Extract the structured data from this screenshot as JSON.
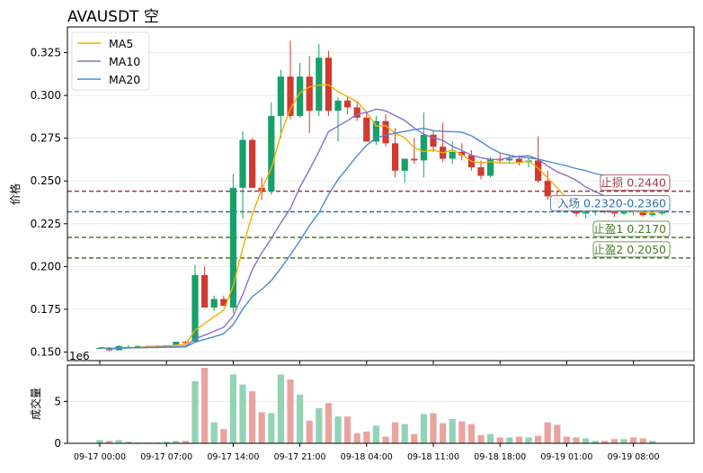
{
  "chart_data": [
    {
      "type": "candlestick",
      "title": "AVAUSDT  空",
      "ylabel": "价格",
      "ylim": [
        0.145,
        0.34
      ],
      "yticks": [
        0.15,
        0.175,
        0.2,
        0.225,
        0.25,
        0.275,
        0.3,
        0.325
      ],
      "ytick_labels": [
        "0.150",
        "0.175",
        "0.200",
        "0.225",
        "0.250",
        "0.275",
        "0.300",
        "0.325"
      ],
      "offset_text": "1e6",
      "grid": true,
      "legend_position": "top-left",
      "x": [
        0,
        1,
        2,
        3,
        4,
        5,
        6,
        7,
        8,
        9,
        10,
        11,
        12,
        13,
        14,
        15,
        16,
        17,
        18,
        19,
        20,
        21,
        22,
        23,
        24,
        25,
        26,
        27,
        28,
        29,
        30,
        31,
        32,
        33,
        34,
        35,
        36,
        37,
        38,
        39,
        40,
        41,
        42,
        43,
        44,
        45,
        46,
        47,
        48,
        49,
        50,
        51,
        52,
        53,
        54,
        55,
        56,
        57,
        58,
        59
      ],
      "ohlc": [
        [
          0.1525,
          0.153,
          0.152,
          0.1525
        ],
        [
          0.1525,
          0.153,
          0.1505,
          0.151
        ],
        [
          0.151,
          0.154,
          0.151,
          0.1535
        ],
        [
          0.153,
          0.154,
          0.1525,
          0.153
        ],
        [
          0.153,
          0.154,
          0.1525,
          0.1535
        ],
        [
          0.1535,
          0.154,
          0.153,
          0.1535
        ],
        [
          0.1535,
          0.154,
          0.153,
          0.1535
        ],
        [
          0.1535,
          0.154,
          0.153,
          0.154
        ],
        [
          0.154,
          0.156,
          0.1535,
          0.156
        ],
        [
          0.156,
          0.1565,
          0.1545,
          0.1555
        ],
        [
          0.156,
          0.201,
          0.1555,
          0.195
        ],
        [
          0.195,
          0.2,
          0.176,
          0.176
        ],
        [
          0.176,
          0.183,
          0.174,
          0.181
        ],
        [
          0.181,
          0.183,
          0.177,
          0.177
        ],
        [
          0.176,
          0.254,
          0.173,
          0.246
        ],
        [
          0.246,
          0.279,
          0.228,
          0.274
        ],
        [
          0.274,
          0.275,
          0.246,
          0.246
        ],
        [
          0.246,
          0.252,
          0.239,
          0.244
        ],
        [
          0.244,
          0.296,
          0.242,
          0.288
        ],
        [
          0.288,
          0.315,
          0.275,
          0.311
        ],
        [
          0.311,
          0.332,
          0.286,
          0.288
        ],
        [
          0.288,
          0.319,
          0.287,
          0.311
        ],
        [
          0.311,
          0.323,
          0.278,
          0.291
        ],
        [
          0.291,
          0.33,
          0.288,
          0.322
        ],
        [
          0.322,
          0.326,
          0.288,
          0.291
        ],
        [
          0.291,
          0.299,
          0.273,
          0.297
        ],
        [
          0.297,
          0.299,
          0.289,
          0.293
        ],
        [
          0.293,
          0.297,
          0.285,
          0.287
        ],
        [
          0.287,
          0.29,
          0.274,
          0.273
        ],
        [
          0.273,
          0.288,
          0.271,
          0.285
        ],
        [
          0.285,
          0.289,
          0.27,
          0.272
        ],
        [
          0.272,
          0.281,
          0.252,
          0.256
        ],
        [
          0.256,
          0.263,
          0.249,
          0.263
        ],
        [
          0.263,
          0.275,
          0.26,
          0.262
        ],
        [
          0.262,
          0.29,
          0.252,
          0.277
        ],
        [
          0.277,
          0.279,
          0.267,
          0.27
        ],
        [
          0.27,
          0.284,
          0.261,
          0.263
        ],
        [
          0.263,
          0.273,
          0.26,
          0.267
        ],
        [
          0.267,
          0.272,
          0.262,
          0.265
        ],
        [
          0.265,
          0.268,
          0.256,
          0.258
        ],
        [
          0.258,
          0.262,
          0.251,
          0.253
        ],
        [
          0.253,
          0.264,
          0.252,
          0.263
        ],
        [
          0.263,
          0.266,
          0.26,
          0.262
        ],
        [
          0.262,
          0.265,
          0.26,
          0.263
        ],
        [
          0.263,
          0.265,
          0.259,
          0.261
        ],
        [
          0.261,
          0.264,
          0.258,
          0.262
        ],
        [
          0.262,
          0.276,
          0.249,
          0.25
        ],
        [
          0.25,
          0.256,
          0.239,
          0.241
        ],
        [
          0.241,
          0.244,
          0.235,
          0.237
        ],
        [
          0.237,
          0.241,
          0.232,
          0.233
        ],
        [
          0.233,
          0.237,
          0.229,
          0.231
        ],
        [
          0.231,
          0.235,
          0.228,
          0.232
        ],
        [
          0.232,
          0.236,
          0.23,
          0.234
        ],
        [
          0.234,
          0.237,
          0.231,
          0.232
        ],
        [
          0.232,
          0.235,
          0.229,
          0.231
        ],
        [
          0.231,
          0.236,
          0.23,
          0.233
        ],
        [
          0.233,
          0.235,
          0.23,
          0.232
        ],
        [
          0.232,
          0.234,
          0.229,
          0.23
        ],
        [
          0.23,
          0.233,
          0.229,
          0.231
        ],
        [
          0.231,
          0.234,
          0.23,
          0.232
        ]
      ],
      "series": [
        {
          "name": "MA5",
          "color": "#f0b000",
          "values": [
            0.1525,
            0.1518,
            0.1523,
            0.1525,
            0.1527,
            0.1532,
            0.1534,
            0.1535,
            0.1541,
            0.1545,
            0.1628,
            0.1667,
            0.1707,
            0.1745,
            0.1886,
            0.2108,
            0.2304,
            0.2453,
            0.2574,
            0.2772,
            0.2922,
            0.3016,
            0.305,
            0.306,
            0.3062,
            0.3022,
            0.2992,
            0.2964,
            0.2901,
            0.2822,
            0.2824,
            0.278,
            0.2753,
            0.2694,
            0.2671,
            0.2682,
            0.2664,
            0.2681,
            0.2655,
            0.2615,
            0.2606,
            0.2612,
            0.2606,
            0.2603,
            0.2607,
            0.2617,
            0.2575,
            0.2517,
            0.2459,
            0.24,
            0.234,
            0.2338,
            0.2327,
            0.2327,
            0.2324,
            0.2325,
            0.2323,
            0.2318,
            0.2316,
            0.2322
          ]
        },
        {
          "name": "MA10",
          "color": "#8a70c8",
          "values": [
            0.1525,
            0.152,
            0.1522,
            0.1524,
            0.1525,
            0.1527,
            0.1529,
            0.153,
            0.1532,
            0.1534,
            0.1577,
            0.1599,
            0.1621,
            0.1645,
            0.171,
            0.1836,
            0.1981,
            0.2079,
            0.2164,
            0.2255,
            0.2339,
            0.2464,
            0.2565,
            0.2673,
            0.2788,
            0.282,
            0.2852,
            0.289,
            0.29,
            0.292,
            0.291,
            0.2882,
            0.2854,
            0.281,
            0.2773,
            0.2752,
            0.2737,
            0.2702,
            0.2678,
            0.2651,
            0.2635,
            0.2626,
            0.2625,
            0.2637,
            0.2643,
            0.2648,
            0.2627,
            0.2587,
            0.2554,
            0.2531,
            0.2504,
            0.2465,
            0.2437,
            0.2412,
            0.2396,
            0.2376,
            0.2352,
            0.2338,
            0.2329,
            0.2325
          ]
        },
        {
          "name": "MA20",
          "color": "#4a8ad0",
          "values": [
            0.1525,
            0.1522,
            0.1523,
            0.1524,
            0.1525,
            0.1526,
            0.1527,
            0.1528,
            0.1529,
            0.153,
            0.1558,
            0.1574,
            0.159,
            0.1607,
            0.166,
            0.1751,
            0.1823,
            0.1866,
            0.1918,
            0.199,
            0.2068,
            0.215,
            0.2239,
            0.2315,
            0.242,
            0.2508,
            0.2577,
            0.2647,
            0.2708,
            0.2752,
            0.2768,
            0.2779,
            0.279,
            0.28,
            0.2808,
            0.2794,
            0.279,
            0.2788,
            0.2785,
            0.2764,
            0.273,
            0.2692,
            0.2664,
            0.265,
            0.264,
            0.2636,
            0.2628,
            0.2614,
            0.2601,
            0.2588,
            0.2572,
            0.256,
            0.2543,
            0.2531,
            0.2519,
            0.2505,
            0.2493,
            0.2483,
            0.247,
            0.246
          ]
        }
      ],
      "hlines": [
        {
          "name": "stop-loss",
          "label": "止损 0.2440",
          "y": 0.244,
          "color": "#9e3a46"
        },
        {
          "name": "entry-high",
          "label": "入场 0.2320-0.2360",
          "y": 0.232,
          "color": "#2f6ea8"
        },
        {
          "name": "take-profit-1",
          "label": "止盈1 0.2170",
          "y": 0.217,
          "color": "#4a7a28"
        },
        {
          "name": "take-profit-2",
          "label": "止盈2 0.2050",
          "y": 0.205,
          "color": "#4a7a28"
        }
      ],
      "colors": {
        "up": "#16a06a",
        "down": "#d03a30"
      }
    },
    {
      "type": "bar",
      "ylabel": "成交量",
      "ylim": [
        0,
        9
      ],
      "yticks": [
        0,
        5
      ],
      "ytick_labels": [
        "0",
        "5"
      ],
      "xtick_labels": [
        "09-17 00:00",
        "09-17 07:00",
        "09-17 14:00",
        "09-17 21:00",
        "09-18 04:00",
        "09-18 11:00",
        "09-18 18:00",
        "09-19 01:00",
        "09-19 08:00"
      ],
      "xtick_positions": [
        0,
        7,
        14,
        21,
        28,
        35,
        42,
        49,
        56
      ],
      "grid": true,
      "values": [
        0.4,
        0.3,
        0.4,
        0.2,
        0.1,
        0.1,
        0.1,
        0.2,
        0.3,
        0.3,
        7.4,
        9.0,
        2.5,
        1.7,
        8.2,
        7.0,
        6.2,
        3.7,
        3.6,
        8.2,
        7.6,
        5.8,
        2.7,
        4.2,
        4.8,
        3.2,
        3.2,
        1.2,
        1.4,
        2.1,
        0.8,
        2.5,
        2.3,
        1.1,
        3.5,
        3.6,
        2.4,
        2.9,
        2.6,
        2.3,
        1.0,
        1.1,
        0.7,
        0.7,
        0.8,
        0.7,
        0.9,
        2.5,
        2.2,
        0.8,
        0.7,
        0.6,
        0.3,
        0.3,
        0.5,
        0.5,
        0.7,
        0.6,
        0.3,
        0.0
      ]
    }
  ]
}
